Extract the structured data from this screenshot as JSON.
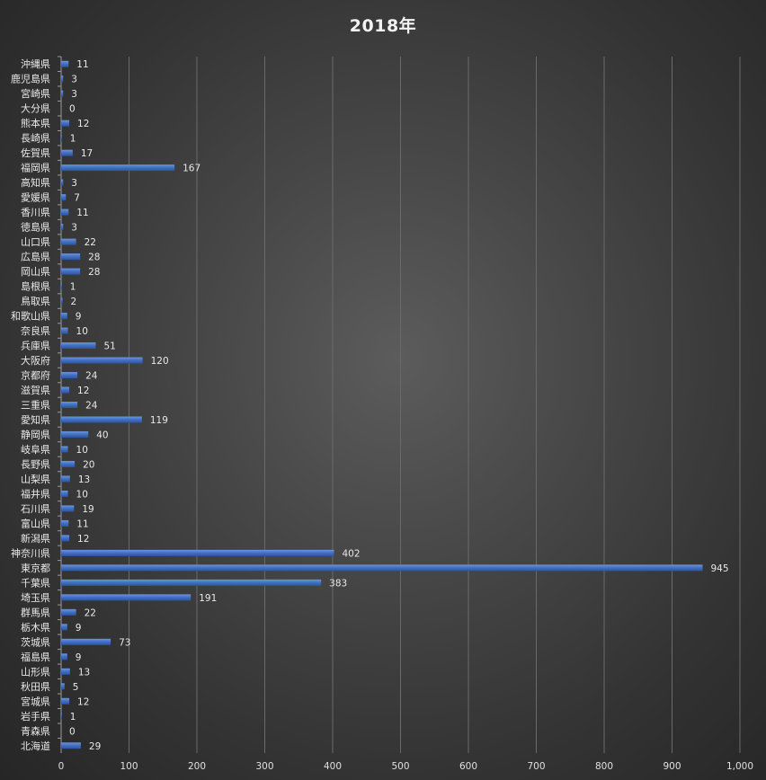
{
  "chart_data": {
    "type": "bar",
    "orientation": "horizontal",
    "title": "2018年",
    "categories": [
      "沖縄県",
      "鹿児島県",
      "宮崎県",
      "大分県",
      "熊本県",
      "長崎県",
      "佐賀県",
      "福岡県",
      "高知県",
      "愛媛県",
      "香川県",
      "徳島県",
      "山口県",
      "広島県",
      "岡山県",
      "島根県",
      "鳥取県",
      "和歌山県",
      "奈良県",
      "兵庫県",
      "大阪府",
      "京都府",
      "滋賀県",
      "三重県",
      "愛知県",
      "静岡県",
      "岐阜県",
      "長野県",
      "山梨県",
      "福井県",
      "石川県",
      "富山県",
      "新潟県",
      "神奈川県",
      "東京都",
      "千葉県",
      "埼玉県",
      "群馬県",
      "栃木県",
      "茨城県",
      "福島県",
      "山形県",
      "秋田県",
      "宮城県",
      "岩手県",
      "青森県",
      "北海道"
    ],
    "values": [
      11,
      3,
      3,
      0,
      12,
      1,
      17,
      167,
      3,
      7,
      11,
      3,
      22,
      28,
      28,
      1,
      2,
      9,
      10,
      51,
      120,
      24,
      12,
      24,
      119,
      40,
      10,
      20,
      13,
      10,
      19,
      11,
      12,
      402,
      945,
      383,
      191,
      22,
      9,
      73,
      9,
      13,
      5,
      12,
      1,
      0,
      29
    ],
    "xlim": [
      0,
      1000
    ],
    "xticks": [
      0,
      100,
      200,
      300,
      400,
      500,
      600,
      700,
      800,
      900,
      1000
    ],
    "xtick_labels": [
      "0",
      "100",
      "200",
      "300",
      "400",
      "500",
      "600",
      "700",
      "800",
      "900",
      "1,000"
    ],
    "grid": true,
    "bar_color": "#4472c4",
    "legend": "none"
  }
}
